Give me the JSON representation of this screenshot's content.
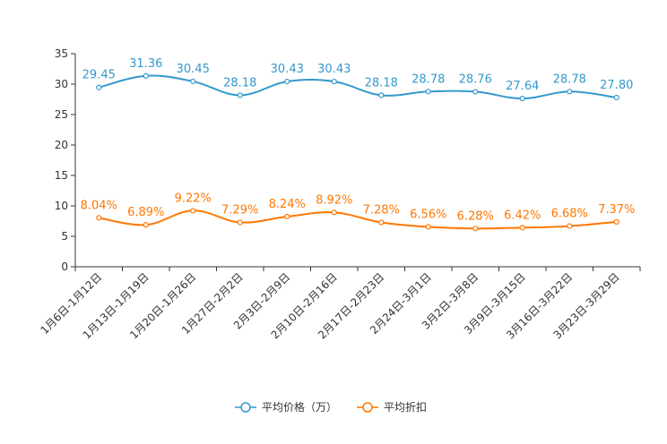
{
  "chart_data": {
    "type": "line",
    "categories": [
      "1月6日-1月12日",
      "1月13日-1月19日",
      "1月20日-1月26日",
      "1月27日-2月2日",
      "2月3日-2月9日",
      "2月10日-2月16日",
      "2月17日-2月23日",
      "2月24日-3月1日",
      "3月2日-3月8日",
      "3月9日-3月15日",
      "3月16日-3月22日",
      "3月23日-3月29日"
    ],
    "ylim": [
      0,
      35
    ],
    "yticks": [
      0,
      5,
      10,
      15,
      20,
      25,
      30,
      35
    ],
    "series": [
      {
        "name": "平均价格（万）",
        "color": "#3399cc",
        "values": [
          29.45,
          31.36,
          30.45,
          28.18,
          30.43,
          30.43,
          28.18,
          28.78,
          28.76,
          27.64,
          28.78,
          27.8
        ],
        "labels": [
          "29.45",
          "31.36",
          "30.45",
          "28.18",
          "30.43",
          "30.43",
          "28.18",
          "28.78",
          "28.76",
          "27.64",
          "28.78",
          "27.80"
        ]
      },
      {
        "name": "平均折扣",
        "color": "#ff7700",
        "values": [
          8.04,
          6.89,
          9.22,
          7.29,
          8.24,
          8.92,
          7.28,
          6.56,
          6.28,
          6.42,
          6.68,
          7.37
        ],
        "labels": [
          "8.04%",
          "6.89%",
          "9.22%",
          "7.29%",
          "8.24%",
          "8.92%",
          "7.28%",
          "6.56%",
          "6.28%",
          "6.42%",
          "6.68%",
          "7.37%"
        ]
      }
    ],
    "legend_position": "bottom-center"
  }
}
